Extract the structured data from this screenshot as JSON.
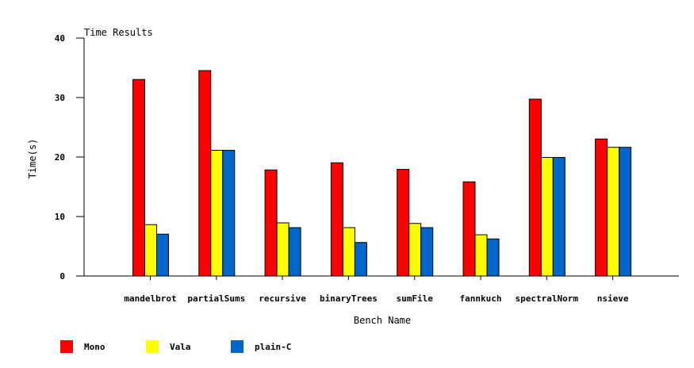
{
  "chart_data": {
    "type": "bar",
    "title": "Time Results",
    "xlabel": "Bench Name",
    "ylabel": "Time(s)",
    "ylim": [
      0,
      40
    ],
    "yticks": [
      0,
      10,
      20,
      30,
      40
    ],
    "categories": [
      "mandelbrot",
      "partialSums",
      "recursive",
      "binaryTrees",
      "sumFile",
      "fannkuch",
      "spectralNorm",
      "nsieve"
    ],
    "series": [
      {
        "name": "Mono",
        "color": "#ff0000",
        "values": [
          33.1,
          34.6,
          17.9,
          19.1,
          18.0,
          15.9,
          29.8,
          23.1
        ]
      },
      {
        "name": "Vala",
        "color": "#ffff00",
        "values": [
          8.7,
          21.2,
          9.0,
          8.2,
          8.9,
          7.0,
          20.0,
          21.7
        ]
      },
      {
        "name": "plain-C",
        "color": "#0066cc",
        "values": [
          7.1,
          21.2,
          8.2,
          5.7,
          8.2,
          6.3,
          20.0,
          21.7
        ]
      }
    ],
    "grid": false,
    "legend_position": "bottom-left"
  }
}
